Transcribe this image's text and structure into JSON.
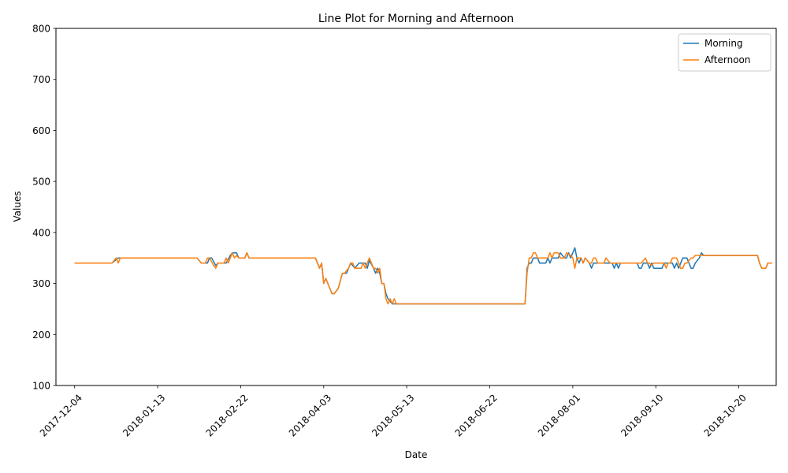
{
  "chart_data": {
    "type": "line",
    "title": "Line Plot for Morning and Afternoon",
    "xlabel": "Date",
    "ylabel": "Values",
    "xlim": [
      "2017-11-25",
      "2018-11-07"
    ],
    "ylim": [
      100,
      800
    ],
    "xticks": [
      "2017-12-04",
      "2018-01-13",
      "2018-02-22",
      "2018-04-03",
      "2018-05-13",
      "2018-06-22",
      "2018-08-01",
      "2018-09-10",
      "2018-10-20"
    ],
    "yticks": [
      100,
      200,
      300,
      400,
      500,
      600,
      700,
      800
    ],
    "grid": false,
    "legend_position": "top-right",
    "series": [
      {
        "name": "Morning",
        "color": "#1f77b4",
        "points": [
          [
            "2017-12-04",
            340
          ],
          [
            "2017-12-22",
            340
          ],
          [
            "2017-12-25",
            350
          ],
          [
            "2018-01-13",
            350
          ],
          [
            "2018-02-01",
            350
          ],
          [
            "2018-02-03",
            340
          ],
          [
            "2018-02-06",
            340
          ],
          [
            "2018-02-07",
            350
          ],
          [
            "2018-02-08",
            350
          ],
          [
            "2018-02-10",
            335
          ],
          [
            "2018-02-11",
            340
          ],
          [
            "2018-02-15",
            340
          ],
          [
            "2018-02-17",
            355
          ],
          [
            "2018-02-18",
            360
          ],
          [
            "2018-02-20",
            360
          ],
          [
            "2018-02-21",
            350
          ],
          [
            "2018-02-24",
            350
          ],
          [
            "2018-02-25",
            360
          ],
          [
            "2018-02-26",
            350
          ],
          [
            "2018-03-30",
            350
          ],
          [
            "2018-04-01",
            330
          ],
          [
            "2018-04-02",
            340
          ],
          [
            "2018-04-03",
            300
          ],
          [
            "2018-04-04",
            310
          ],
          [
            "2018-04-06",
            290
          ],
          [
            "2018-04-07",
            280
          ],
          [
            "2018-04-08",
            280
          ],
          [
            "2018-04-10",
            290
          ],
          [
            "2018-04-12",
            320
          ],
          [
            "2018-04-14",
            320
          ],
          [
            "2018-04-16",
            340
          ],
          [
            "2018-04-18",
            330
          ],
          [
            "2018-04-20",
            340
          ],
          [
            "2018-04-23",
            340
          ],
          [
            "2018-04-24",
            330
          ],
          [
            "2018-04-25",
            345
          ],
          [
            "2018-04-27",
            330
          ],
          [
            "2018-04-28",
            320
          ],
          [
            "2018-04-29",
            330
          ],
          [
            "2018-04-30",
            320
          ],
          [
            "2018-05-01",
            300
          ],
          [
            "2018-05-02",
            300
          ],
          [
            "2018-05-03",
            280
          ],
          [
            "2018-05-04",
            270
          ],
          [
            "2018-05-05",
            265
          ],
          [
            "2018-05-06",
            260
          ],
          [
            "2018-07-09",
            260
          ],
          [
            "2018-07-10",
            330
          ],
          [
            "2018-07-11",
            340
          ],
          [
            "2018-07-12",
            340
          ],
          [
            "2018-07-13",
            350
          ],
          [
            "2018-07-15",
            350
          ],
          [
            "2018-07-16",
            340
          ],
          [
            "2018-07-19",
            340
          ],
          [
            "2018-07-20",
            350
          ],
          [
            "2018-07-21",
            340
          ],
          [
            "2018-07-22",
            350
          ],
          [
            "2018-07-25",
            350
          ],
          [
            "2018-07-26",
            360
          ],
          [
            "2018-07-28",
            350
          ],
          [
            "2018-07-29",
            350
          ],
          [
            "2018-07-30",
            360
          ],
          [
            "2018-07-31",
            350
          ],
          [
            "2018-08-01",
            360
          ],
          [
            "2018-08-02",
            370
          ],
          [
            "2018-08-03",
            350
          ],
          [
            "2018-08-04",
            340
          ],
          [
            "2018-08-05",
            350
          ],
          [
            "2018-08-06",
            340
          ],
          [
            "2018-08-07",
            350
          ],
          [
            "2018-08-09",
            340
          ],
          [
            "2018-08-10",
            330
          ],
          [
            "2018-08-11",
            340
          ],
          [
            "2018-08-20",
            340
          ],
          [
            "2018-08-21",
            330
          ],
          [
            "2018-08-22",
            340
          ],
          [
            "2018-08-23",
            330
          ],
          [
            "2018-08-24",
            340
          ],
          [
            "2018-09-01",
            340
          ],
          [
            "2018-09-02",
            330
          ],
          [
            "2018-09-03",
            330
          ],
          [
            "2018-09-04",
            340
          ],
          [
            "2018-09-06",
            340
          ],
          [
            "2018-09-07",
            330
          ],
          [
            "2018-09-08",
            340
          ],
          [
            "2018-09-09",
            330
          ],
          [
            "2018-09-13",
            330
          ],
          [
            "2018-09-14",
            340
          ],
          [
            "2018-09-18",
            340
          ],
          [
            "2018-09-19",
            330
          ],
          [
            "2018-09-20",
            340
          ],
          [
            "2018-09-21",
            330
          ],
          [
            "2018-09-23",
            350
          ],
          [
            "2018-09-25",
            350
          ],
          [
            "2018-09-27",
            330
          ],
          [
            "2018-09-28",
            330
          ],
          [
            "2018-09-29",
            340
          ],
          [
            "2018-10-01",
            350
          ],
          [
            "2018-10-02",
            360
          ],
          [
            "2018-10-03",
            355
          ],
          [
            "2018-10-29",
            355
          ],
          [
            "2018-10-30",
            340
          ],
          [
            "2018-10-31",
            330
          ],
          [
            "2018-11-02",
            330
          ],
          [
            "2018-11-03",
            340
          ],
          [
            "2018-11-05",
            340
          ]
        ]
      },
      {
        "name": "Afternoon",
        "color": "#ff7f0e",
        "points": [
          [
            "2017-12-04",
            340
          ],
          [
            "2017-12-22",
            340
          ],
          [
            "2017-12-24",
            350
          ],
          [
            "2017-12-25",
            340
          ],
          [
            "2017-12-26",
            350
          ],
          [
            "2018-01-13",
            350
          ],
          [
            "2018-02-01",
            350
          ],
          [
            "2018-02-03",
            340
          ],
          [
            "2018-02-05",
            340
          ],
          [
            "2018-02-06",
            350
          ],
          [
            "2018-02-07",
            350
          ],
          [
            "2018-02-09",
            335
          ],
          [
            "2018-02-10",
            330
          ],
          [
            "2018-02-11",
            340
          ],
          [
            "2018-02-14",
            340
          ],
          [
            "2018-02-15",
            350
          ],
          [
            "2018-02-16",
            340
          ],
          [
            "2018-02-17",
            350
          ],
          [
            "2018-02-18",
            360
          ],
          [
            "2018-02-19",
            350
          ],
          [
            "2018-02-20",
            355
          ],
          [
            "2018-02-21",
            350
          ],
          [
            "2018-02-24",
            350
          ],
          [
            "2018-02-25",
            360
          ],
          [
            "2018-02-26",
            350
          ],
          [
            "2018-03-30",
            350
          ],
          [
            "2018-04-01",
            330
          ],
          [
            "2018-04-02",
            340
          ],
          [
            "2018-04-03",
            300
          ],
          [
            "2018-04-04",
            310
          ],
          [
            "2018-04-06",
            290
          ],
          [
            "2018-04-07",
            280
          ],
          [
            "2018-04-08",
            280
          ],
          [
            "2018-04-10",
            290
          ],
          [
            "2018-04-12",
            320
          ],
          [
            "2018-04-13",
            320
          ],
          [
            "2018-04-15",
            330
          ],
          [
            "2018-04-16",
            340
          ],
          [
            "2018-04-17",
            340
          ],
          [
            "2018-04-18",
            330
          ],
          [
            "2018-04-21",
            330
          ],
          [
            "2018-04-22",
            340
          ],
          [
            "2018-04-23",
            330
          ],
          [
            "2018-04-24",
            340
          ],
          [
            "2018-04-25",
            350
          ],
          [
            "2018-04-27",
            330
          ],
          [
            "2018-04-28",
            330
          ],
          [
            "2018-04-29",
            320
          ],
          [
            "2018-04-30",
            330
          ],
          [
            "2018-05-01",
            300
          ],
          [
            "2018-05-02",
            300
          ],
          [
            "2018-05-03",
            270
          ],
          [
            "2018-05-04",
            260
          ],
          [
            "2018-05-05",
            270
          ],
          [
            "2018-05-06",
            260
          ],
          [
            "2018-05-07",
            270
          ],
          [
            "2018-05-08",
            260
          ],
          [
            "2018-07-09",
            260
          ],
          [
            "2018-07-10",
            320
          ],
          [
            "2018-07-11",
            350
          ],
          [
            "2018-07-12",
            350
          ],
          [
            "2018-07-13",
            360
          ],
          [
            "2018-07-14",
            360
          ],
          [
            "2018-07-15",
            350
          ],
          [
            "2018-07-20",
            350
          ],
          [
            "2018-07-21",
            360
          ],
          [
            "2018-07-22",
            350
          ],
          [
            "2018-07-23",
            360
          ],
          [
            "2018-07-25",
            360
          ],
          [
            "2018-07-26",
            350
          ],
          [
            "2018-07-28",
            350
          ],
          [
            "2018-07-29",
            360
          ],
          [
            "2018-07-31",
            355
          ],
          [
            "2018-08-01",
            350
          ],
          [
            "2018-08-02",
            330
          ],
          [
            "2018-08-03",
            350
          ],
          [
            "2018-08-05",
            350
          ],
          [
            "2018-08-06",
            340
          ],
          [
            "2018-08-07",
            350
          ],
          [
            "2018-08-08",
            345
          ],
          [
            "2018-08-09",
            340
          ],
          [
            "2018-08-10",
            340
          ],
          [
            "2018-08-11",
            350
          ],
          [
            "2018-08-12",
            350
          ],
          [
            "2018-08-13",
            340
          ],
          [
            "2018-08-16",
            340
          ],
          [
            "2018-08-17",
            350
          ],
          [
            "2018-08-18",
            345
          ],
          [
            "2018-08-19",
            340
          ],
          [
            "2018-09-03",
            340
          ],
          [
            "2018-09-05",
            350
          ],
          [
            "2018-09-06",
            340
          ],
          [
            "2018-09-07",
            340
          ],
          [
            "2018-09-08",
            335
          ],
          [
            "2018-09-09",
            340
          ],
          [
            "2018-09-14",
            340
          ],
          [
            "2018-09-15",
            330
          ],
          [
            "2018-09-16",
            340
          ],
          [
            "2018-09-17",
            340
          ],
          [
            "2018-09-18",
            350
          ],
          [
            "2018-09-20",
            350
          ],
          [
            "2018-09-21",
            340
          ],
          [
            "2018-09-22",
            330
          ],
          [
            "2018-09-23",
            330
          ],
          [
            "2018-09-24",
            340
          ],
          [
            "2018-09-25",
            340
          ],
          [
            "2018-09-27",
            350
          ],
          [
            "2018-09-28",
            350
          ],
          [
            "2018-09-29",
            355
          ],
          [
            "2018-10-29",
            355
          ],
          [
            "2018-10-30",
            340
          ],
          [
            "2018-10-31",
            330
          ],
          [
            "2018-11-02",
            330
          ],
          [
            "2018-11-03",
            340
          ],
          [
            "2018-11-05",
            340
          ]
        ]
      }
    ]
  }
}
